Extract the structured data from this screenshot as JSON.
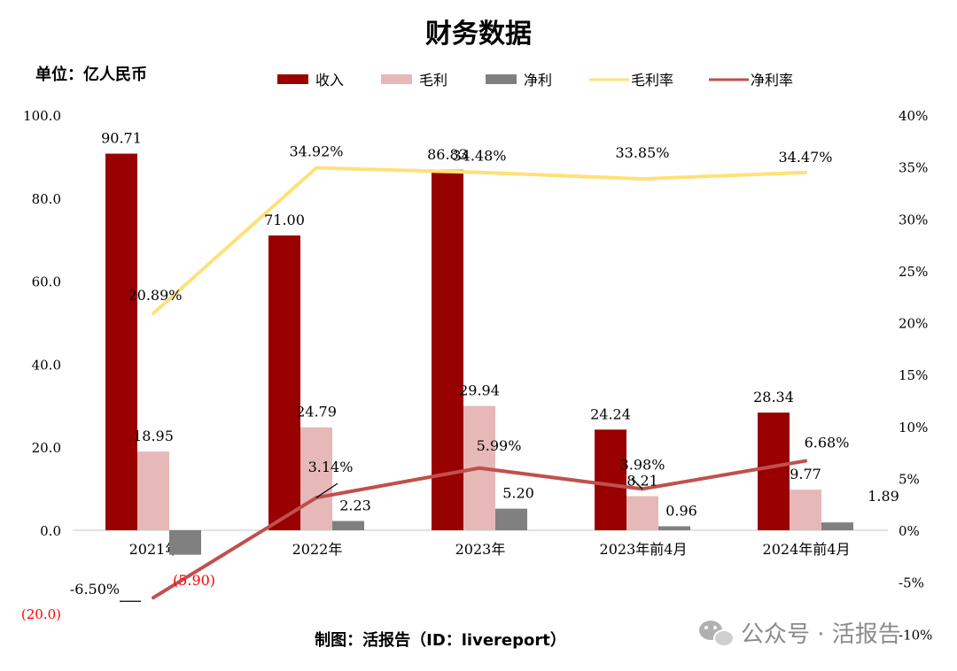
{
  "chart_data": {
    "type": "bar",
    "title": "财务数据",
    "unit_label": "单位：亿人民币",
    "footer": "制图：活报告（ID：livereport）",
    "watermark": "公众号 · 活报告",
    "categories": [
      "2021年",
      "2022年",
      "2023年",
      "2023年前4月",
      "2024年前4月"
    ],
    "series": [
      {
        "name": "收入",
        "kind": "bar",
        "axis": "left",
        "color": "#990000",
        "values": [
          90.71,
          71.0,
          86.83,
          24.24,
          28.34
        ],
        "labels": [
          "90.71",
          "71.00",
          "86.83",
          "24.24",
          "28.34"
        ]
      },
      {
        "name": "毛利",
        "kind": "bar",
        "axis": "left",
        "color": "#e6b8b7",
        "values": [
          18.95,
          24.79,
          29.94,
          8.21,
          9.77
        ],
        "labels": [
          "18.95",
          "24.79",
          "29.94",
          "8.21",
          "9.77"
        ]
      },
      {
        "name": "净利",
        "kind": "bar",
        "axis": "left",
        "color": "#808080",
        "values": [
          -5.9,
          2.23,
          5.2,
          0.96,
          1.89
        ],
        "labels": [
          "(5.90)",
          "2.23",
          "5.20",
          "0.96",
          "1.89"
        ]
      },
      {
        "name": "毛利率",
        "kind": "line",
        "axis": "right",
        "color": "#ffe07a",
        "values": [
          20.89,
          34.92,
          34.48,
          33.85,
          34.47
        ],
        "labels": [
          "20.89%",
          "34.92%",
          "34.48%",
          "33.85%",
          "34.47%"
        ]
      },
      {
        "name": "净利率",
        "kind": "line",
        "axis": "right",
        "color": "#c0504d",
        "values": [
          -6.5,
          3.14,
          5.99,
          3.98,
          6.68
        ],
        "labels": [
          "-6.50%",
          "3.14%",
          "5.99%",
          "3.98%",
          "6.68%"
        ]
      }
    ],
    "y_left": {
      "ylim": [
        -20,
        100
      ],
      "tick_labels": [
        "(20.0)",
        "0.0",
        "20.0",
        "40.0",
        "60.0",
        "80.0",
        "100.0"
      ],
      "tick_values": [
        -20,
        0,
        20,
        40,
        60,
        80,
        100
      ]
    },
    "y_right": {
      "ylim": [
        -10,
        40
      ],
      "tick_labels": [
        "-10%",
        "-5%",
        "0%",
        "5%",
        "10%",
        "15%",
        "20%",
        "25%",
        "30%",
        "35%",
        "40%"
      ],
      "tick_values": [
        -10,
        -5,
        0,
        5,
        10,
        15,
        20,
        25,
        30,
        35,
        40
      ]
    },
    "grid": false,
    "legend_position": "top",
    "negative_label_color": "#ff0000"
  }
}
